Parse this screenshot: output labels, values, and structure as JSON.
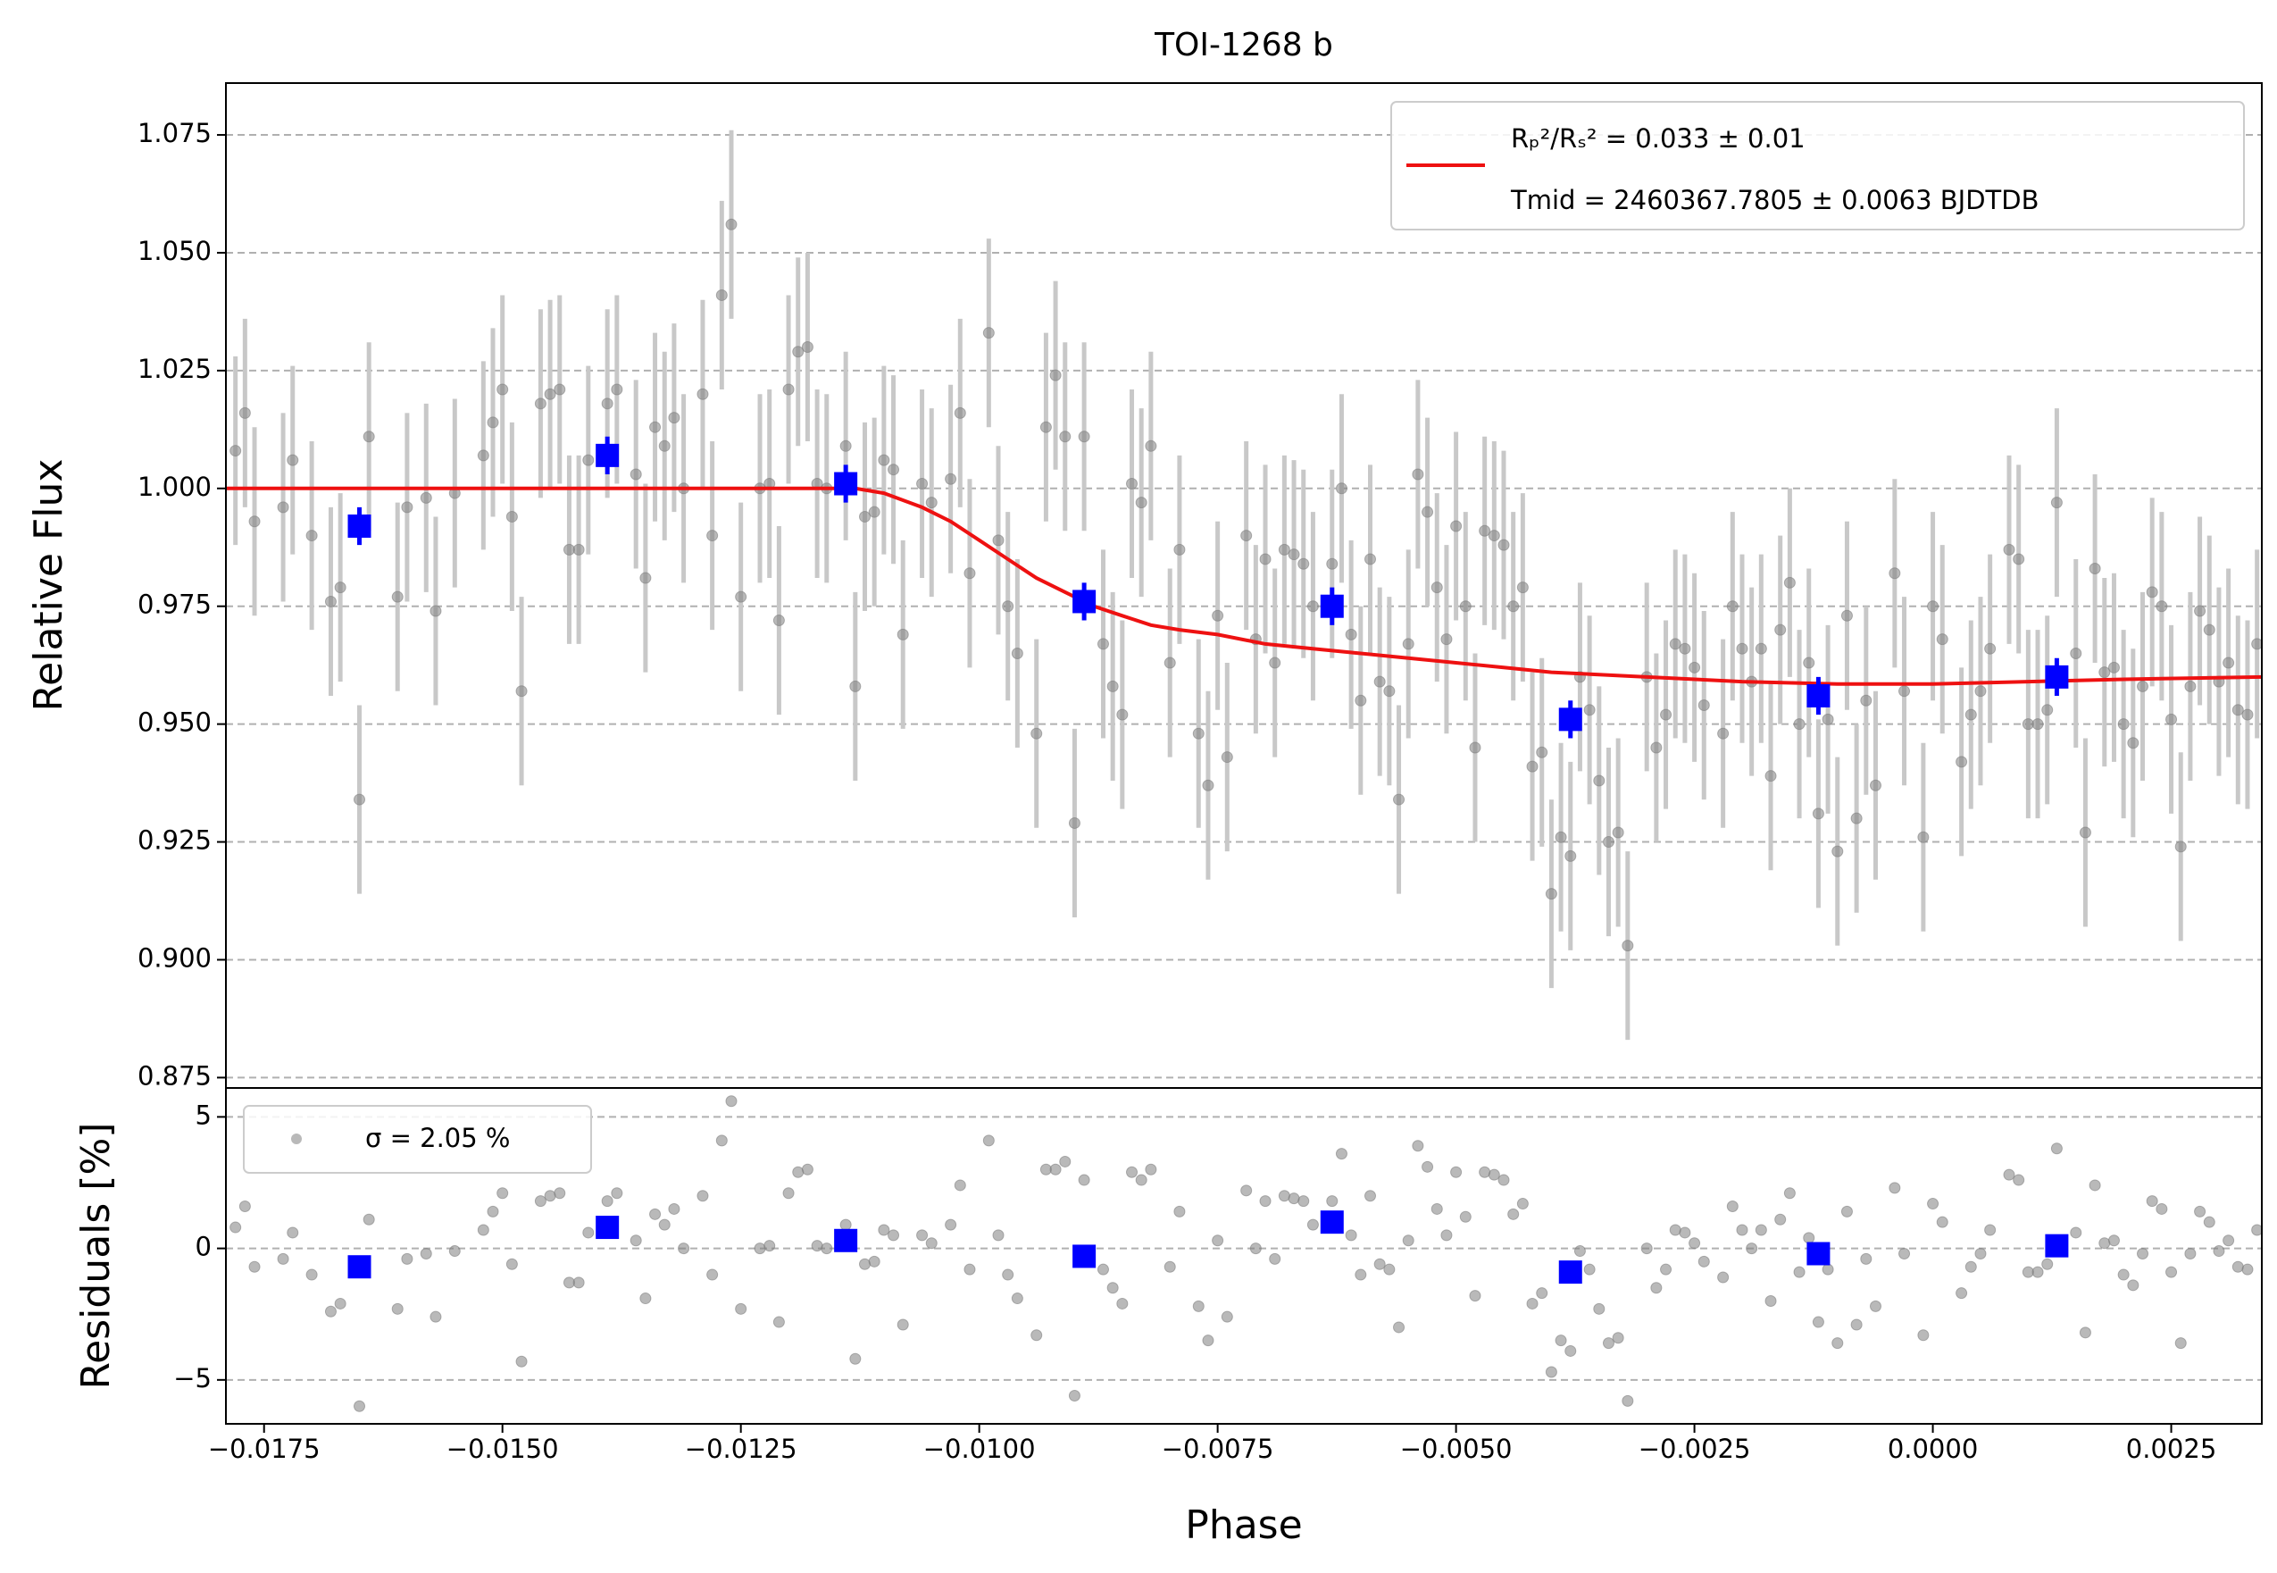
{
  "chart_data": {
    "type": "scatter",
    "title": "TOI-1268 b",
    "xlabel": "Phase",
    "ylabel": "Relative Flux",
    "residual_ylabel": "Residuals [%]",
    "residual_legend": "σ = 2.05 %",
    "legend_loc": "upper right",
    "residual_legend_loc": "upper left",
    "grid": true,
    "xlim": [
      -0.0179,
      0.00345
    ],
    "xticks": [
      {
        "value": -0.0175,
        "label": "−0.0175"
      },
      {
        "value": -0.015,
        "label": "−0.0150"
      },
      {
        "value": -0.0125,
        "label": "−0.0125"
      },
      {
        "value": -0.01,
        "label": "−0.0100"
      },
      {
        "value": -0.0075,
        "label": "−0.0075"
      },
      {
        "value": -0.005,
        "label": "−0.0050"
      },
      {
        "value": -0.0025,
        "label": "−0.0025"
      },
      {
        "value": 0,
        "label": "0.0000"
      },
      {
        "value": 0.0025,
        "label": "0.0025"
      }
    ],
    "ylim": [
      0.8728,
      1.086
    ],
    "yticks": [
      0.875,
      {
        "value": 0.9,
        "label": "0.900"
      },
      0.925,
      {
        "value": 0.95,
        "label": "0.950"
      },
      0.975,
      {
        "value": 1,
        "label": "1.000"
      },
      1.025,
      {
        "value": 1.05,
        "label": "1.050"
      },
      1.075
    ],
    "residual_ylim": [
      -6.67,
      6.1
    ],
    "residual_yticks": [
      {
        "value": -5,
        "label": "−5"
      },
      0,
      5
    ],
    "series": [
      {
        "color": "#808080",
        "error_color": "#c8c8c8",
        "yerr": 0.02,
        "x": [
          -0.0178,
          -0.0177,
          -0.0176,
          -0.0173,
          -0.0172,
          -0.017,
          -0.0168,
          -0.0167,
          -0.0165,
          -0.0164,
          -0.0161,
          -0.016,
          -0.0158,
          -0.0157,
          -0.0155,
          -0.0152,
          -0.0151,
          -0.015,
          -0.0149,
          -0.0148,
          -0.0146,
          -0.0145,
          -0.0144,
          -0.0143,
          -0.0142,
          -0.0141,
          -0.0139,
          -0.0138,
          -0.0136,
          -0.0135,
          -0.0134,
          -0.0133,
          -0.0132,
          -0.0131,
          -0.0129,
          -0.0128,
          -0.0127,
          -0.0126,
          -0.0125,
          -0.0123,
          -0.0122,
          -0.0121,
          -0.012,
          -0.0119,
          -0.0118,
          -0.0117,
          -0.0116,
          -0.0114,
          -0.0113,
          -0.0112,
          -0.0111,
          -0.011,
          -0.0109,
          -0.0108,
          -0.0106,
          -0.0105,
          -0.0103,
          -0.0102,
          -0.0101,
          -0.0099,
          -0.0098,
          -0.0097,
          -0.0096,
          -0.0094,
          -0.0093,
          -0.0092,
          -0.0091,
          -0.009,
          -0.0089,
          -0.0087,
          -0.0086,
          -0.0085,
          -0.0084,
          -0.0083,
          -0.0082,
          -0.008,
          -0.0079,
          -0.0077,
          -0.0076,
          -0.0075,
          -0.0074,
          -0.0072,
          -0.0071,
          -0.007,
          -0.0069,
          -0.0068,
          -0.0067,
          -0.0066,
          -0.0065,
          -0.0063,
          -0.0062,
          -0.0061,
          -0.006,
          -0.0059,
          -0.0058,
          -0.0057,
          -0.0056,
          -0.0055,
          -0.0054,
          -0.0053,
          -0.0052,
          -0.0051,
          -0.005,
          -0.0049,
          -0.0048,
          -0.0047,
          -0.0046,
          -0.0045,
          -0.0044,
          -0.0043,
          -0.0042,
          -0.0041,
          -0.004,
          -0.0039,
          -0.0038,
          -0.0037,
          -0.0036,
          -0.0035,
          -0.0034,
          -0.0033,
          -0.0032,
          -0.003,
          -0.0029,
          -0.0028,
          -0.0027,
          -0.0026,
          -0.0025,
          -0.0024,
          -0.0022,
          -0.0021,
          -0.002,
          -0.0019,
          -0.0018,
          -0.0017,
          -0.0016,
          -0.0015,
          -0.0014,
          -0.0013,
          -0.0012,
          -0.0011,
          -0.001,
          -0.0009,
          -0.0008,
          -0.0007,
          -0.0006,
          -0.0004,
          -0.0003,
          -0.0001,
          0.0,
          0.0001,
          0.0003,
          0.0004,
          0.0005,
          0.0006,
          0.0008,
          0.0009,
          0.001,
          0.0011,
          0.0012,
          0.0013,
          0.0015,
          0.0016,
          0.0017,
          0.0018,
          0.0019,
          0.002,
          0.0021,
          0.0022,
          0.0023,
          0.0024,
          0.0025,
          0.0026,
          0.0027,
          0.0028,
          0.0029,
          0.003,
          0.0031,
          0.0032,
          0.0033,
          0.0034
        ],
        "values": [
          1.008,
          1.016,
          0.993,
          0.996,
          1.006,
          0.99,
          0.976,
          0.979,
          0.934,
          1.011,
          0.977,
          0.996,
          0.998,
          0.974,
          0.999,
          1.007,
          1.014,
          1.021,
          0.994,
          0.957,
          1.018,
          1.02,
          1.021,
          0.987,
          0.987,
          1.006,
          1.018,
          1.021,
          1.003,
          0.981,
          1.013,
          1.009,
          1.015,
          1.0,
          1.02,
          0.99,
          1.041,
          1.056,
          0.977,
          1.0,
          1.001,
          0.972,
          1.021,
          1.029,
          1.03,
          1.001,
          1.0,
          1.009,
          0.958,
          0.994,
          0.995,
          1.006,
          1.004,
          0.969,
          1.001,
          0.997,
          1.002,
          1.016,
          0.982,
          1.033,
          0.989,
          0.975,
          0.965,
          0.948,
          1.013,
          1.024,
          1.011,
          0.929,
          1.011,
          0.967,
          0.958,
          0.952,
          1.001,
          0.997,
          1.009,
          0.963,
          0.987,
          0.948,
          0.937,
          0.973,
          0.943,
          0.99,
          0.968,
          0.985,
          0.963,
          0.987,
          0.986,
          0.984,
          0.975,
          0.984,
          1.0,
          0.969,
          0.955,
          0.985,
          0.959,
          0.957,
          0.934,
          0.967,
          1.003,
          0.995,
          0.979,
          0.968,
          0.992,
          0.975,
          0.945,
          0.991,
          0.99,
          0.988,
          0.975,
          0.979,
          0.941,
          0.944,
          0.914,
          0.926,
          0.922,
          0.96,
          0.953,
          0.938,
          0.925,
          0.927,
          0.903,
          0.96,
          0.945,
          0.952,
          0.967,
          0.966,
          0.962,
          0.954,
          0.948,
          0.975,
          0.966,
          0.959,
          0.966,
          0.939,
          0.97,
          0.98,
          0.95,
          0.963,
          0.931,
          0.951,
          0.923,
          0.973,
          0.93,
          0.955,
          0.937,
          0.982,
          0.957,
          0.926,
          0.975,
          0.968,
          0.942,
          0.952,
          0.957,
          0.966,
          0.987,
          0.985,
          0.95,
          0.95,
          0.953,
          0.997,
          0.965,
          0.927,
          0.983,
          0.961,
          0.962,
          0.95,
          0.946,
          0.958,
          0.978,
          0.975,
          0.951,
          0.924,
          0.958,
          0.974,
          0.97,
          0.959,
          0.963,
          0.953,
          0.952,
          0.967
        ],
        "residuals": [
          0.8,
          1.6,
          -0.7,
          -0.4,
          0.6,
          -1.0,
          -2.4,
          -2.1,
          -6.0,
          1.1,
          -2.3,
          -0.4,
          -0.2,
          -2.6,
          -0.1,
          0.7,
          1.4,
          2.1,
          -0.6,
          -4.3,
          1.8,
          2.0,
          2.1,
          -1.3,
          -1.3,
          0.6,
          1.8,
          2.1,
          0.3,
          -1.9,
          1.3,
          0.9,
          1.5,
          0.0,
          2.0,
          -1.0,
          4.1,
          5.6,
          -2.3,
          0.0,
          0.1,
          -2.8,
          2.1,
          2.9,
          3.0,
          0.1,
          0.0,
          0.9,
          -4.2,
          -0.6,
          -0.5,
          0.7,
          0.5,
          -2.9,
          0.5,
          0.2,
          0.9,
          2.4,
          -0.8,
          4.1,
          0.5,
          -1.0,
          -1.9,
          -3.3,
          3.0,
          3.0,
          3.3,
          -5.6,
          2.6,
          -0.8,
          -1.5,
          -2.1,
          2.9,
          2.6,
          3.0,
          -0.7,
          1.4,
          -2.2,
          -3.5,
          0.3,
          -2.6,
          2.2,
          0.0,
          1.8,
          -0.4,
          2.0,
          1.9,
          1.8,
          0.9,
          1.8,
          3.6,
          0.5,
          -1.0,
          2.0,
          -0.6,
          -0.8,
          -3.0,
          0.3,
          3.9,
          3.1,
          1.5,
          0.5,
          2.9,
          1.2,
          -1.8,
          2.9,
          2.8,
          2.6,
          1.3,
          1.7,
          -2.1,
          -1.7,
          -4.7,
          -3.5,
          -3.9,
          -0.1,
          -0.8,
          -2.3,
          -3.6,
          -3.4,
          -5.8,
          0.0,
          -1.5,
          -0.8,
          0.7,
          0.6,
          0.2,
          -0.5,
          -1.1,
          1.6,
          0.7,
          0.0,
          0.7,
          -2.0,
          1.1,
          2.1,
          -0.9,
          0.4,
          -2.8,
          -0.8,
          -3.6,
          1.4,
          -2.9,
          -0.4,
          -2.2,
          2.3,
          -0.2,
          -3.3,
          1.7,
          1.0,
          -1.7,
          -0.7,
          -0.2,
          0.7,
          2.8,
          2.6,
          -0.9,
          -0.9,
          -0.6,
          3.8,
          0.6,
          -3.2,
          2.4,
          0.2,
          0.3,
          -1.0,
          -1.4,
          -0.2,
          1.8,
          1.5,
          -0.9,
          -3.6,
          -0.2,
          1.4,
          1.0,
          -0.1,
          0.3,
          -0.7,
          -0.8,
          0.7
        ]
      },
      {
        "color": "#0000ff",
        "yerr": 0.004,
        "x": [
          -0.0165,
          -0.0139,
          -0.0114,
          -0.0089,
          -0.0063,
          -0.0038,
          -0.0012,
          0.0013
        ],
        "values": [
          0.992,
          1.007,
          1.001,
          0.976,
          0.975,
          0.951,
          0.956,
          0.96
        ],
        "residuals": [
          -0.7,
          0.8,
          0.3,
          -0.3,
          1.0,
          -0.9,
          -0.2,
          0.1
        ]
      },
      {
        "type": "line",
        "color": "#ee1111",
        "name": [
          "Rₚ²/Rₛ² = 0.033 ± 0.01",
          "Tmid = 2460367.7805 ± 0.0063 BJDTDB"
        ],
        "x": [
          -0.0179,
          -0.0113,
          -0.011,
          -0.0106,
          -0.0103,
          -0.01,
          -0.0097,
          -0.0094,
          -0.0091,
          -0.0088,
          -0.0085,
          -0.0082,
          -0.0079,
          -0.0075,
          -0.007,
          -0.0065,
          -0.006,
          -0.0055,
          -0.005,
          -0.0045,
          -0.004,
          -0.0035,
          -0.003,
          -0.002,
          -0.001,
          0.0,
          0.001,
          0.002,
          0.00345
        ],
        "values": [
          1.0,
          1.0,
          0.999,
          0.996,
          0.993,
          0.989,
          0.985,
          0.981,
          0.978,
          0.975,
          0.973,
          0.971,
          0.97,
          0.969,
          0.967,
          0.966,
          0.965,
          0.964,
          0.963,
          0.962,
          0.961,
          0.9605,
          0.96,
          0.959,
          0.9585,
          0.9585,
          0.959,
          0.9595,
          0.96
        ]
      }
    ]
  }
}
